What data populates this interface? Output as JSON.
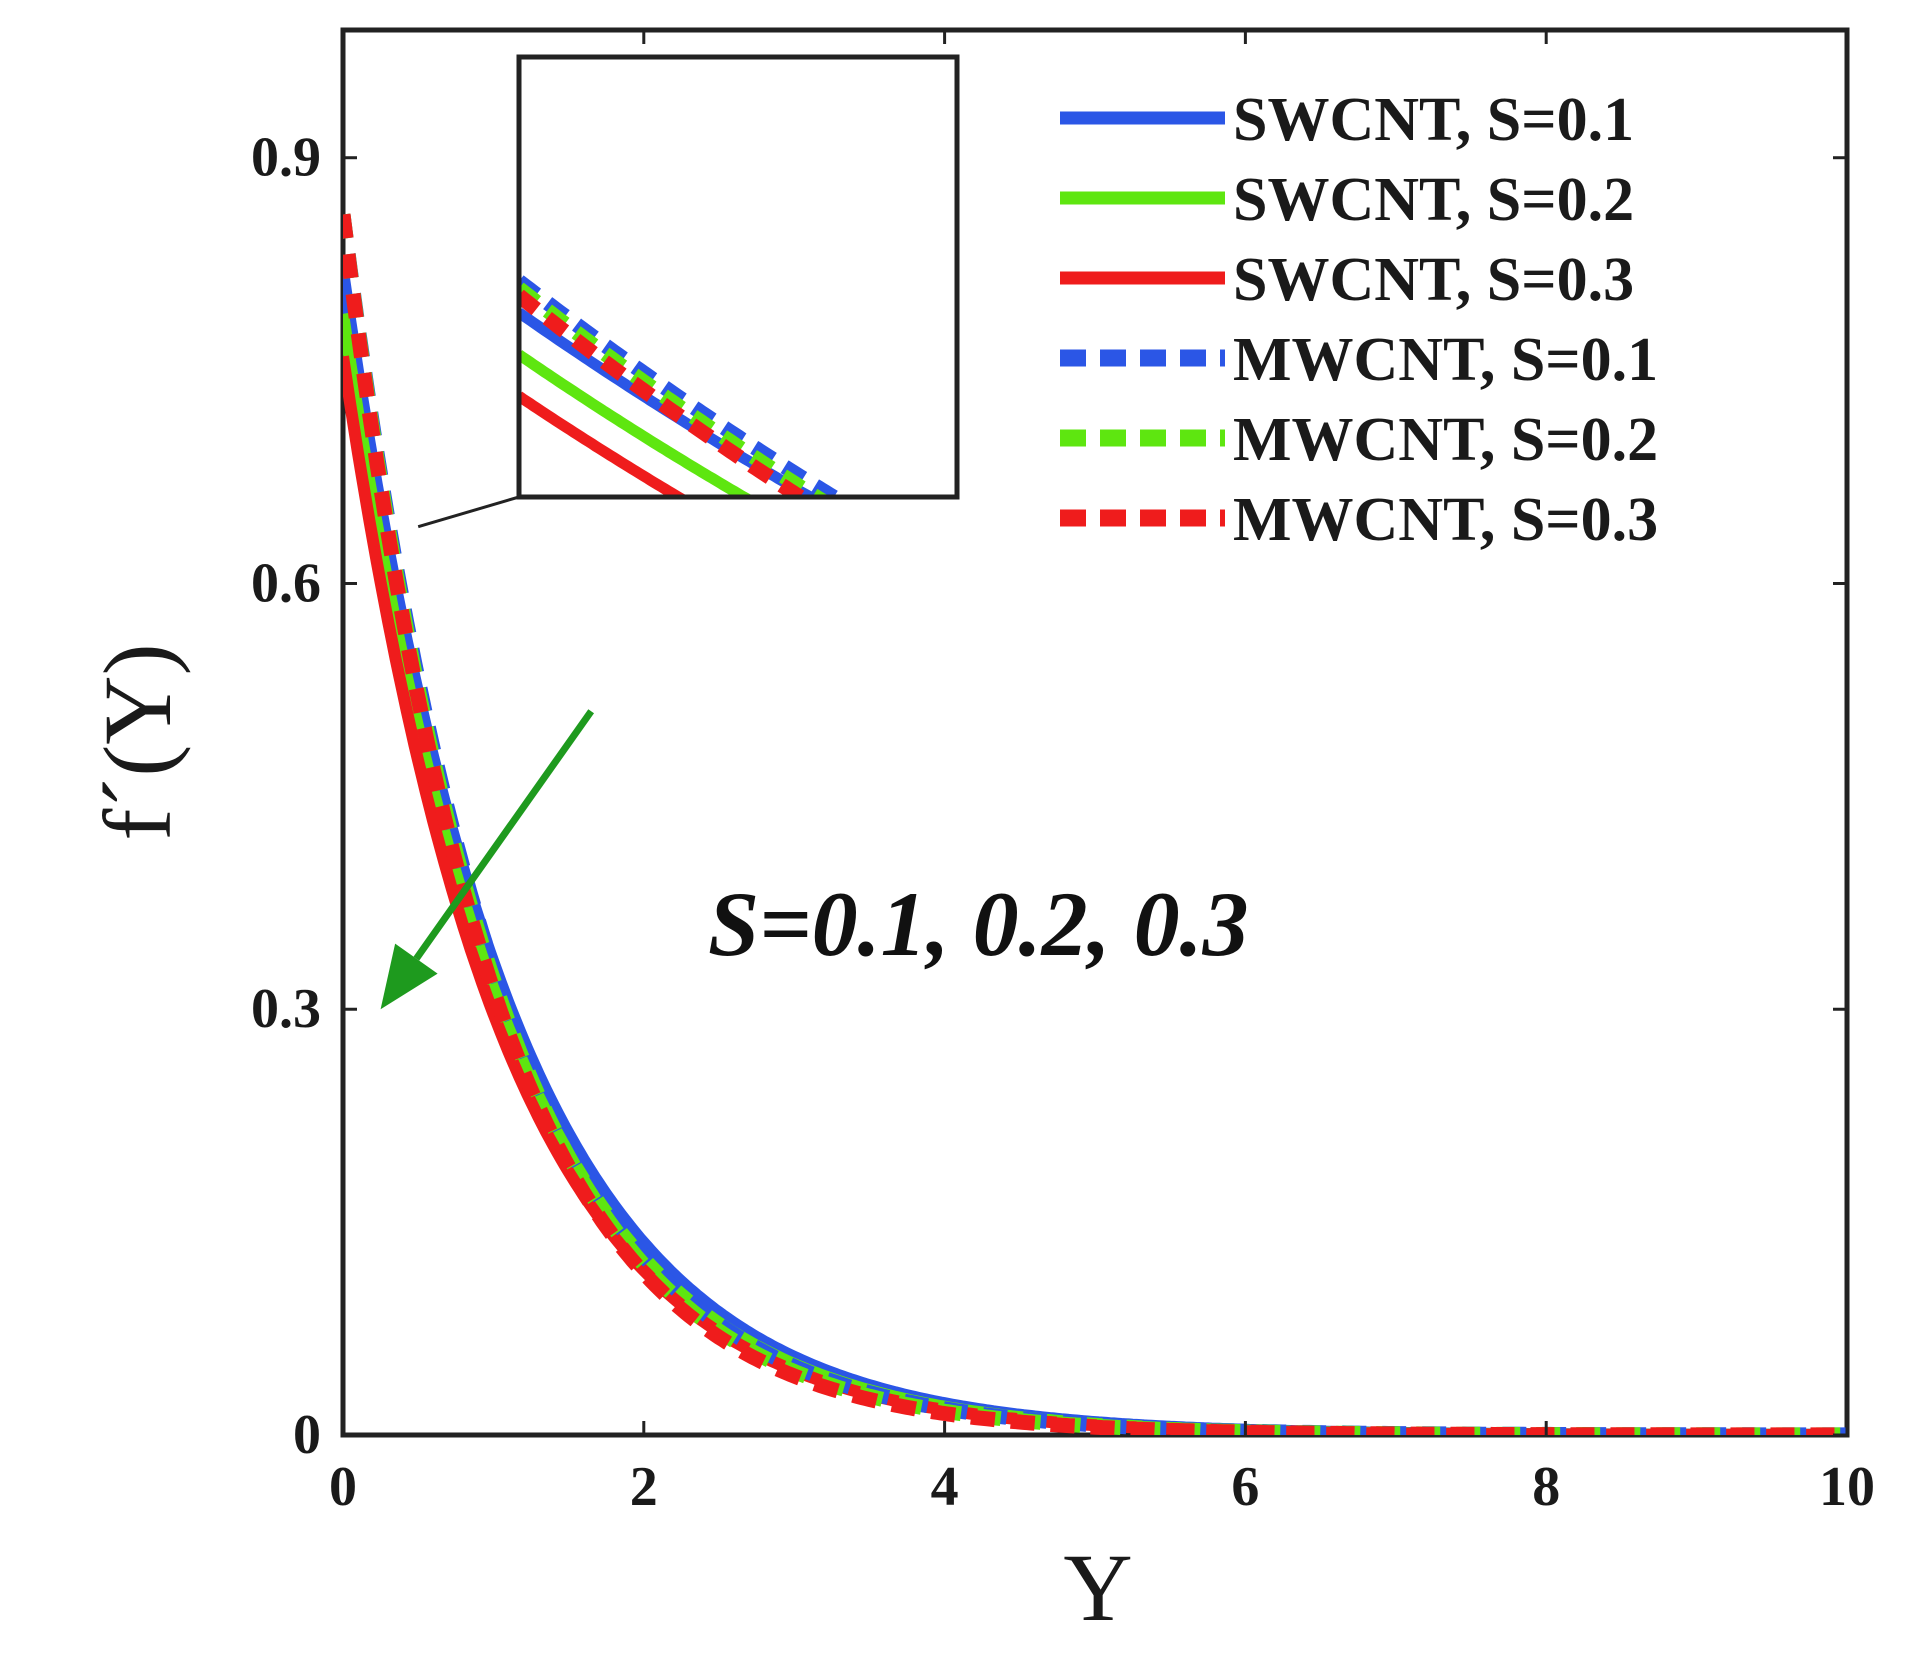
{
  "chart_data": {
    "type": "line",
    "title": "",
    "xlabel": "Υ",
    "ylabel": "f´(Υ)",
    "xlim": [
      0,
      10
    ],
    "ylim": [
      0,
      0.99
    ],
    "xticks": [
      0,
      2,
      4,
      6,
      8,
      10
    ],
    "xtick_labels": [
      "0",
      "2",
      "4",
      "6",
      "8",
      "10"
    ],
    "yticks": [
      0,
      0.3,
      0.6,
      0.9
    ],
    "ytick_labels": [
      "0",
      "0.3",
      "0.6",
      "0.9"
    ],
    "grid": false,
    "legend_position": "top-right",
    "series": [
      {
        "name": "SWCNT, S=0.1",
        "color": "#2b56e6",
        "style": "solid",
        "y0": 0.82,
        "decay": 0.9
      },
      {
        "name": "SWCNT, S=0.2",
        "color": "#5ee610",
        "style": "solid",
        "y0": 0.79,
        "decay": 0.92
      },
      {
        "name": "SWCNT, S=0.3",
        "color": "#ef1c1c",
        "style": "solid",
        "y0": 0.76,
        "decay": 0.94
      },
      {
        "name": "MWCNT, S=0.1",
        "color": "#2b56e6",
        "style": "dashed",
        "y0": 0.86,
        "decay": 0.96
      },
      {
        "name": "MWCNT, S=0.2",
        "color": "#5ee610",
        "style": "dashed",
        "y0": 0.86,
        "decay": 0.985
      },
      {
        "name": "MWCNT, S=0.3",
        "color": "#ef1c1c",
        "style": "dashed",
        "y0": 0.86,
        "decay": 1.01
      }
    ],
    "annotation": {
      "text": "S=0.1, 0.2, 0.3",
      "arrow_color": "#1e9a1e",
      "arrow_from": [
        1.65,
        0.51
      ],
      "arrow_to": [
        0.25,
        0.3
      ]
    },
    "inset": {
      "zoom_point": [
        0.5,
        0.64
      ],
      "description": "magnified view of curves"
    }
  }
}
